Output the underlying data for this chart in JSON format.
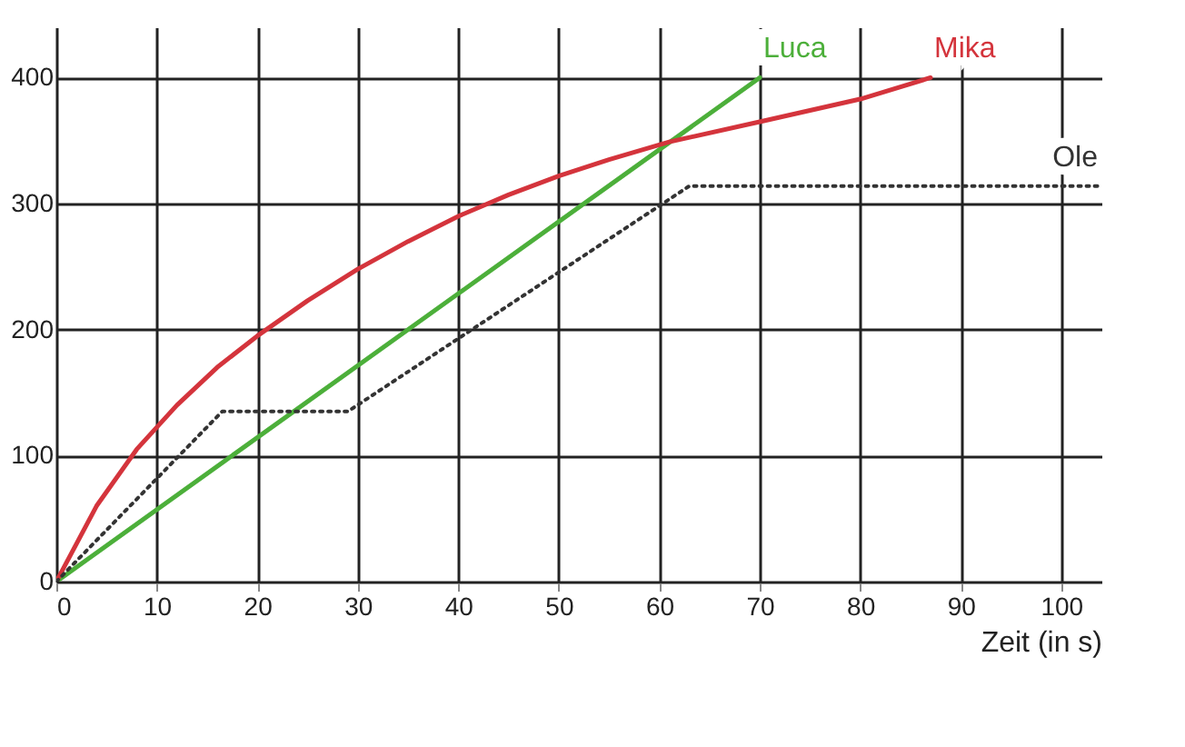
{
  "chart_data": {
    "type": "line",
    "xlabel": "Zeit (in s)",
    "xlim": [
      0,
      104
    ],
    "ylim": [
      0,
      440
    ],
    "xticks": [
      0,
      10,
      20,
      30,
      40,
      50,
      60,
      70,
      80,
      90,
      100
    ],
    "yticks": [
      0,
      100,
      200,
      300,
      400
    ],
    "grid": true,
    "marker": "none",
    "series": [
      {
        "name": "Luca",
        "color": "#4caf3a",
        "line_style": "solid",
        "x": [
          0,
          70
        ],
        "values": [
          0,
          400
        ]
      },
      {
        "name": "Mika",
        "color": "#d4343c",
        "line_style": "solid",
        "x": [
          0,
          4,
          8,
          12,
          16,
          20,
          25,
          30,
          35,
          40,
          45,
          50,
          55,
          61,
          70,
          80,
          87
        ],
        "values": [
          0,
          60,
          105,
          140,
          170,
          195,
          223,
          248,
          270,
          290,
          307,
          322,
          335,
          349,
          365,
          383,
          400
        ]
      },
      {
        "name": "Ole",
        "color": "#333333",
        "line_style": "dotted",
        "x": [
          0,
          16.5,
          29,
          63,
          104
        ],
        "values": [
          0,
          135,
          135,
          314,
          314
        ]
      }
    ]
  }
}
